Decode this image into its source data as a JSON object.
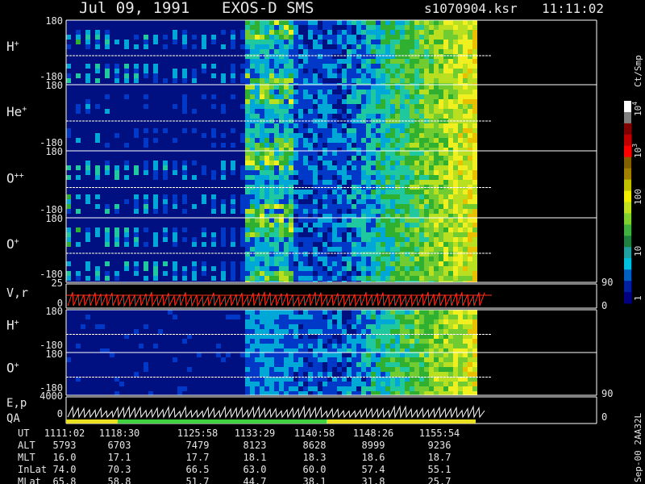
{
  "header": {
    "date": "Jul 09, 1991",
    "instrument": "EXOS-D SMS",
    "file": "s1070904.ksr",
    "time": "11:11:02"
  },
  "panels": [
    {
      "label": "H",
      "sup": "+",
      "ticks": [
        "180",
        "-180"
      ]
    },
    {
      "label": "He",
      "sup": "+",
      "ticks": [
        "180",
        "-180"
      ]
    },
    {
      "label": "O",
      "sup": "++",
      "ticks": [
        "180",
        "-180"
      ]
    },
    {
      "label": "O",
      "sup": "+",
      "ticks": [
        "180",
        "-180"
      ]
    }
  ],
  "v_panel": {
    "label": "V,r",
    "ticks": [
      "25",
      "0"
    ],
    "right_ticks": [
      "90",
      "0"
    ]
  },
  "low_panels": [
    {
      "label": "H",
      "sup": "+",
      "ticks": [
        "180",
        "-180"
      ]
    },
    {
      "label": "O",
      "sup": "+",
      "ticks": [
        "180",
        "-180"
      ]
    }
  ],
  "e_panel": {
    "label": "E,p",
    "label2": "QA",
    "ticks": [
      "4000",
      "0"
    ],
    "right_ticks": [
      "90",
      "0"
    ]
  },
  "colorbar": {
    "unit": "Ct/Smp",
    "ticks": [
      {
        "base": "10",
        "exp": "4"
      },
      {
        "base": "10",
        "exp": "3"
      },
      {
        "base": "100"
      },
      {
        "base": "10"
      },
      {
        "base": "1"
      }
    ]
  },
  "table": {
    "rows": [
      [
        "UT",
        "1111:02",
        "1118:30",
        "1125:58",
        "1133:29",
        "1140:58",
        "1148:26",
        "1155:54"
      ],
      [
        "ALT",
        "5793",
        "6703",
        "7479",
        "8123",
        "8628",
        "8999",
        "9236"
      ],
      [
        "MLT",
        "16.0",
        "17.1",
        "17.7",
        "18.1",
        "18.3",
        "18.6",
        "18.7"
      ],
      [
        "InLat",
        "74.0",
        "70.3",
        "66.5",
        "63.0",
        "60.0",
        "57.4",
        "55.1"
      ],
      [
        "MLat",
        "65.8",
        "58.8",
        "51.7",
        "44.7",
        "38.1",
        "31.8",
        "25.7"
      ]
    ]
  },
  "footer": "Sep-00 2AA32L"
}
